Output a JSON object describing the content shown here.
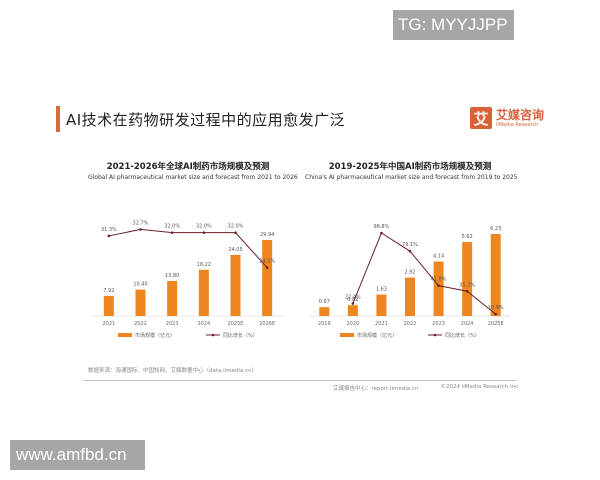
{
  "watermarks": {
    "top": "TG: MYYJJPP",
    "bottom": "www.amfbd.cn"
  },
  "slide": {
    "title": "AI技术在药物研发过程中的应用愈发广泛",
    "logo": {
      "mark": "艾",
      "cn": "艾媒咨询",
      "en": "iiMedia Research"
    }
  },
  "colors": {
    "bar": "#ee8620",
    "line": "#6b1f2a",
    "accent": "#d96a3c"
  },
  "chart_data": [
    {
      "type": "bar",
      "title": "2021-2026年全球AI制药市场规模及预测",
      "subtitle": "Global AI pharmaceutical market size and forecast from 2021 to 2026",
      "categories": [
        "2021",
        "2022",
        "2023",
        "2024",
        "2025E",
        "2026E"
      ],
      "series": [
        {
          "name": "市场规模（亿元）",
          "type": "bar",
          "values": [
            7.92,
            10.4,
            13.8,
            18.22,
            24.05,
            29.94
          ]
        },
        {
          "name": "同比增长（%）",
          "type": "line",
          "values": [
            31.3,
            32.7,
            32.0,
            32.0,
            32.0,
            24.5
          ],
          "labels": [
            "31.3%",
            "32.7%",
            "32.0%",
            "32.0%",
            "32.0%",
            "24.5%"
          ]
        }
      ],
      "legend": [
        "市场规模（亿元）",
        "同比增长（%）"
      ],
      "legend_position": "bottom",
      "grid": false
    },
    {
      "type": "bar",
      "title": "2019-2025年中国AI制药市场规模及预测",
      "subtitle": "China's AI pharmaceutical market size and forecast from 2019 to 2025",
      "categories": [
        "2019",
        "2020",
        "2021",
        "2022",
        "2023",
        "2024",
        "2025E"
      ],
      "series": [
        {
          "name": "市场规模（亿元）",
          "type": "bar",
          "values": [
            0.67,
            0.82,
            1.63,
            2.92,
            4.14,
            5.62,
            6.23
          ]
        },
        {
          "name": "同比增长（%）",
          "type": "line",
          "values": [
            null,
            22.4,
            98.8,
            79.1,
            41.8,
            35.7,
            10.9
          ],
          "labels": [
            "",
            "22.4%",
            "98.8%",
            "79.1%",
            "41.8%",
            "35.7%",
            "10.9%"
          ]
        }
      ],
      "legend": [
        "市场规模（亿元）",
        "同比增长（%）"
      ],
      "legend_position": "bottom",
      "grid": false
    }
  ],
  "footer": {
    "source": "数据来源：海通国际、中国知网、艾媒数据中心（data.iimedia.cn）",
    "report_center": "艾媒报告中心：report.iimedia.cn",
    "copyright": "©2024 iiMedia Research Inc"
  }
}
